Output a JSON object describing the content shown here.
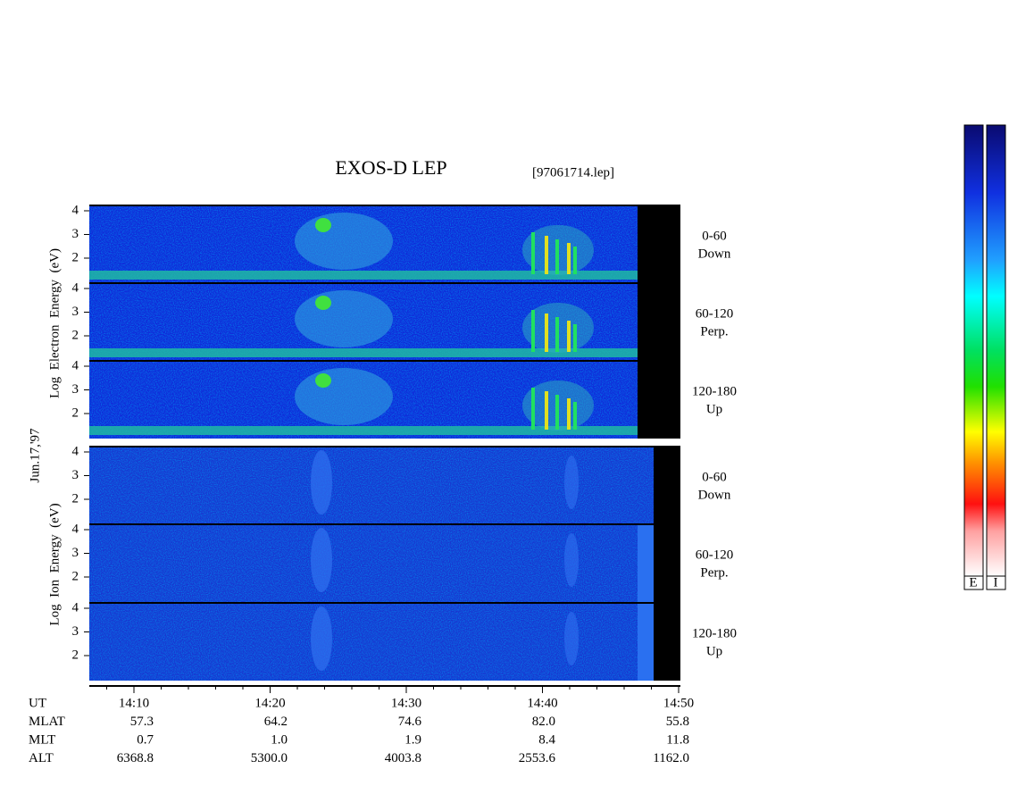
{
  "title": "EXOS-D LEP",
  "file": "[97061714.lep]",
  "date": "Jun.17,'97",
  "electron_ylabel": "Log  Electron  Energy  (eV)",
  "ion_ylabel": "Log  Ion  Energy  (eV)",
  "yticks": [
    "4",
    "3",
    "2"
  ],
  "pitch_angles": [
    {
      "range": "0-60",
      "dir": "Down"
    },
    {
      "range": "60-120",
      "dir": "Perp."
    },
    {
      "range": "120-180",
      "dir": "Up"
    }
  ],
  "time_ticks": [
    "14:10",
    "14:20",
    "14:30",
    "14:40",
    "14:50"
  ],
  "table": {
    "labels": [
      "UT",
      "MLAT",
      "MLT",
      "ALT"
    ],
    "rows": [
      [
        "57.3",
        "64.2",
        "74.6",
        "82.0",
        "55.8"
      ],
      [
        "0.7",
        "1.0",
        "1.9",
        "8.4",
        "11.8"
      ],
      [
        "6368.8",
        "5300.0",
        "4003.8",
        "2553.6",
        "1162.0"
      ]
    ]
  },
  "colorbar_labels": [
    "E",
    "I"
  ]
}
